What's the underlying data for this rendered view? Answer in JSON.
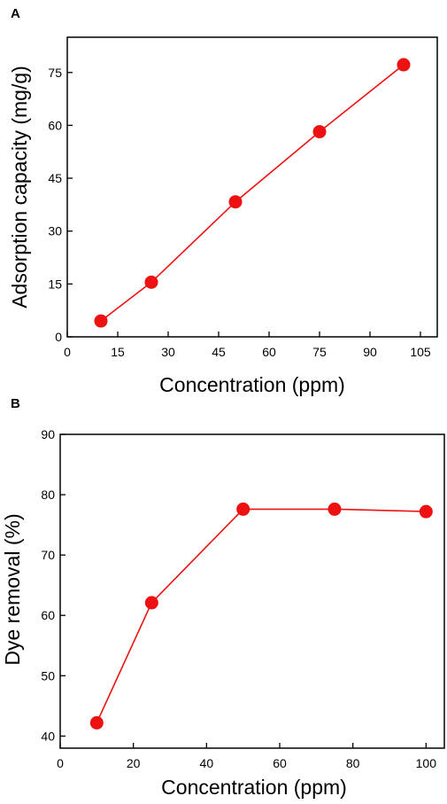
{
  "chart_data": [
    {
      "panel": "A",
      "type": "line",
      "xlabel": "Concentration (ppm)",
      "ylabel": "Adsorption capacity (mg/g)",
      "xlim": [
        0,
        110
      ],
      "ylim": [
        0,
        85
      ],
      "xticks": [
        0,
        15,
        30,
        45,
        60,
        75,
        90,
        105
      ],
      "yticks": [
        0,
        15,
        30,
        45,
        60,
        75
      ],
      "grid": false,
      "color": "#ee1111",
      "series": [
        {
          "x": [
            10,
            25,
            50,
            75,
            100
          ],
          "y": [
            4.5,
            15.5,
            38.3,
            58.2,
            77.2
          ]
        }
      ]
    },
    {
      "panel": "B",
      "type": "line",
      "xlabel": "Concentration (ppm)",
      "ylabel": "Dye removal  (%)",
      "xlim": [
        0,
        105
      ],
      "ylim": [
        38,
        90
      ],
      "xticks": [
        0,
        20,
        40,
        60,
        80,
        100
      ],
      "yticks": [
        40,
        50,
        60,
        70,
        80,
        90
      ],
      "grid": false,
      "color": "#ee1111",
      "series": [
        {
          "x": [
            10,
            25,
            50,
            75,
            100
          ],
          "y": [
            42.2,
            62.1,
            77.6,
            77.6,
            77.2
          ]
        }
      ]
    }
  ]
}
